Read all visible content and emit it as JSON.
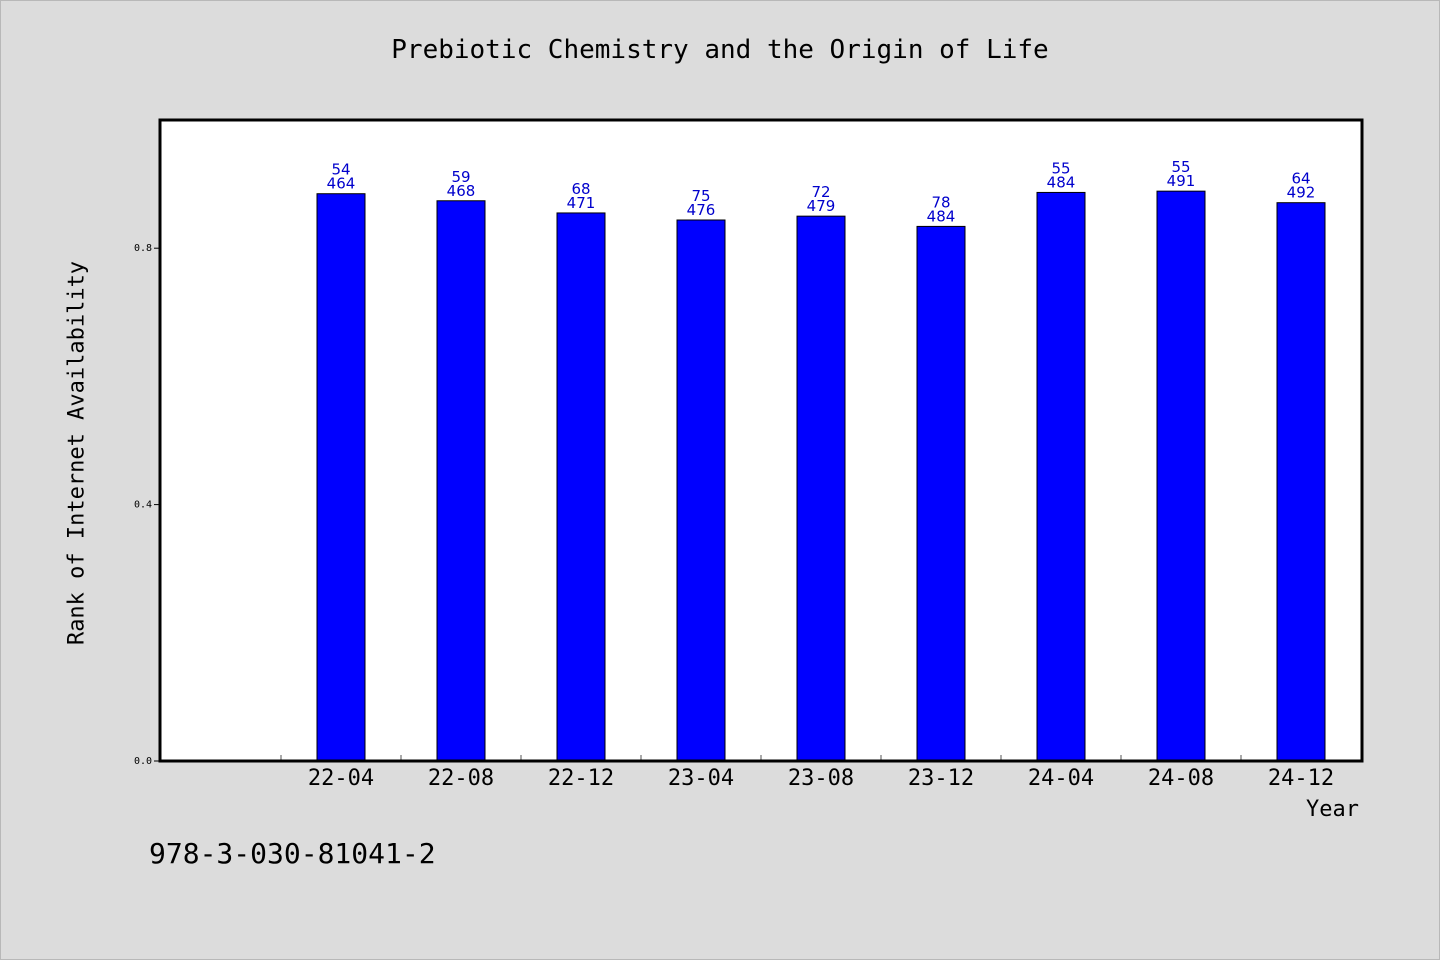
{
  "chart_data": {
    "type": "bar",
    "title": "Prebiotic Chemistry and the Origin of Life",
    "xlabel": "Year",
    "ylabel": "Rank of Internet Availability",
    "categories": [
      "22-04",
      "22-08",
      "22-12",
      "23-04",
      "23-08",
      "23-12",
      "24-04",
      "24-08",
      "24-12"
    ],
    "values": [
      0.885,
      0.874,
      0.855,
      0.844,
      0.85,
      0.834,
      0.887,
      0.889,
      0.871
    ],
    "label_top": [
      "54",
      "59",
      "68",
      "75",
      "72",
      "78",
      "55",
      "55",
      "64"
    ],
    "label_bottom": [
      "464",
      "468",
      "471",
      "476",
      "479",
      "484",
      "484",
      "491",
      "492"
    ],
    "ylim": [
      0.0,
      1.0
    ],
    "yticks": [
      "0.0",
      "0.4",
      "0.8"
    ],
    "bar_color": "#0000ff",
    "label_color": "#0000cc",
    "grid": false
  },
  "footer": {
    "isbn": "978-3-030-81041-2"
  }
}
